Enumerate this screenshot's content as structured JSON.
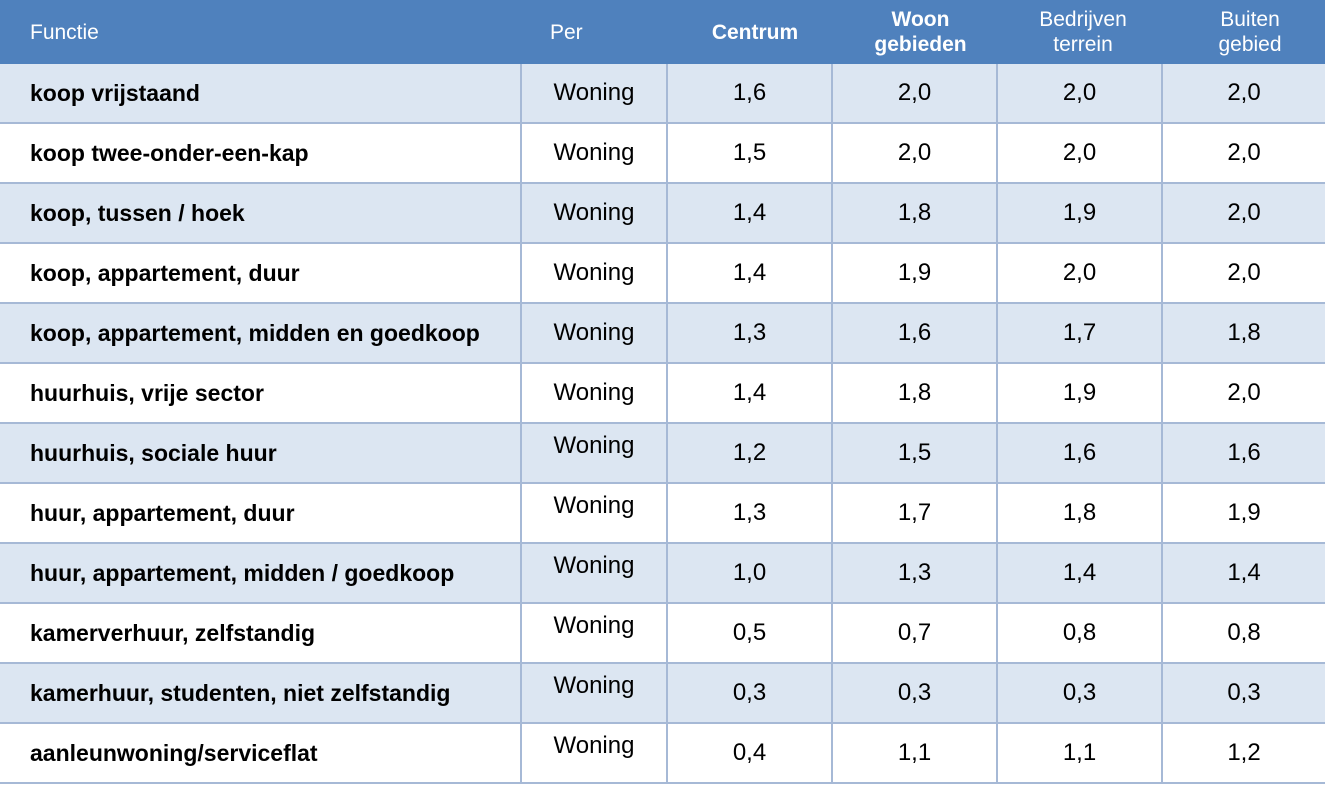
{
  "header": {
    "functie": "Functie",
    "per": "Per",
    "centrum": "Centrum",
    "woon_1": "Woon",
    "woon_2": "gebieden",
    "bedrijven_1": "Bedrijven",
    "bedrijven_2": "terrein",
    "buiten_1": "Buiten",
    "buiten_2": "gebied"
  },
  "rows": [
    {
      "functie": "koop vrijstaand",
      "per": "Woning",
      "centrum": "1,6",
      "woon": "2,0",
      "bedrijven": "2,0",
      "buiten": "2,0"
    },
    {
      "functie": "koop twee-onder-een-kap",
      "per": "Woning",
      "centrum": "1,5",
      "woon": "2,0",
      "bedrijven": "2,0",
      "buiten": "2,0"
    },
    {
      "functie": "koop, tussen / hoek",
      "per": "Woning",
      "centrum": "1,4",
      "woon": "1,8",
      "bedrijven": "1,9",
      "buiten": "2,0"
    },
    {
      "functie": "koop, appartement, duur",
      "per": "Woning",
      "centrum": "1,4",
      "woon": "1,9",
      "bedrijven": "2,0",
      "buiten": "2,0"
    },
    {
      "functie": "koop, appartement, midden en goedkoop",
      "per": "Woning",
      "centrum": "1,3",
      "woon": "1,6",
      "bedrijven": "1,7",
      "buiten": "1,8"
    },
    {
      "functie": "huurhuis, vrije sector",
      "per": "Woning",
      "centrum": "1,4",
      "woon": "1,8",
      "bedrijven": "1,9",
      "buiten": "2,0"
    },
    {
      "functie": "huurhuis, sociale huur",
      "per": "Woning",
      "centrum": "1,2",
      "woon": "1,5",
      "bedrijven": "1,6",
      "buiten": "1,6"
    },
    {
      "functie": "huur, appartement, duur",
      "per": "Woning",
      "centrum": "1,3",
      "woon": "1,7",
      "bedrijven": "1,8",
      "buiten": "1,9"
    },
    {
      "functie": "huur, appartement, midden / goedkoop",
      "per": "Woning",
      "centrum": "1,0",
      "woon": "1,3",
      "bedrijven": "1,4",
      "buiten": "1,4"
    },
    {
      "functie": "kamerverhuur, zelfstandig",
      "per": "Woning",
      "centrum": "0,5",
      "woon": "0,7",
      "bedrijven": "0,8",
      "buiten": "0,8"
    },
    {
      "functie": "kamerhuur, studenten, niet zelfstandig",
      "per": "Woning",
      "centrum": "0,3",
      "woon": "0,3",
      "bedrijven": "0,3",
      "buiten": "0,3"
    },
    {
      "functie": "aanleunwoning/serviceflat",
      "per": "Woning",
      "centrum": "0,4",
      "woon": "1,1",
      "bedrijven": "1,1",
      "buiten": "1,2"
    }
  ]
}
